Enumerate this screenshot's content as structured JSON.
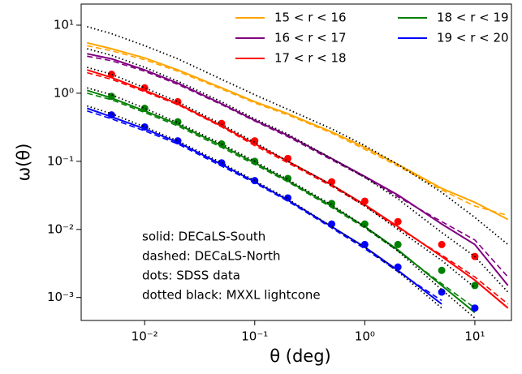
{
  "chart_data": {
    "type": "line",
    "x_label": "θ (deg)",
    "y_label": "ω(θ)",
    "x_log": true,
    "y_log": true,
    "xlim": [
      0.00265,
      21.5
    ],
    "ylim": [
      0.00046,
      20.4
    ],
    "xticks": [
      {
        "value": 0.01,
        "label": "10⁻²"
      },
      {
        "value": 0.1,
        "label": "10⁻¹"
      },
      {
        "value": 1,
        "label": "10⁰"
      },
      {
        "value": 10,
        "label": "10¹"
      }
    ],
    "yticks": [
      {
        "value": 0.001,
        "label": "10⁻³"
      },
      {
        "value": 0.01,
        "label": "10⁻²"
      },
      {
        "value": 0.1,
        "label": "10⁻¹"
      },
      {
        "value": 1,
        "label": "10⁰"
      },
      {
        "value": 10,
        "label": "10¹"
      }
    ],
    "legend": "upper right",
    "annotations": [
      "solid: DECaLS-South",
      "dashed: DECaLS-North",
      "dots: SDSS data",
      "dotted black: MXXL lightcone"
    ],
    "x": [
      0.003,
      0.005,
      0.01,
      0.02,
      0.05,
      0.1,
      0.2,
      0.5,
      1,
      2,
      5,
      10,
      20
    ],
    "series": [
      {
        "name": "15 < r < 16",
        "color": "#ffa500",
        "style": "solid",
        "values": [
          5.5,
          4.5,
          3.3,
          2.2,
          1.2,
          0.75,
          0.5,
          0.27,
          0.16,
          0.09,
          0.04,
          0.025,
          0.014
        ]
      },
      {
        "name": "16 < r < 17",
        "color": "#800080",
        "style": "solid",
        "values": [
          3.8,
          3.2,
          2.2,
          1.4,
          0.7,
          0.4,
          0.24,
          0.11,
          0.06,
          0.032,
          0.012,
          0.006,
          0.0015
        ]
      },
      {
        "name": "17 < r < 18",
        "color": "#ff0000",
        "style": "solid",
        "values": [
          2.2,
          1.7,
          1.1,
          0.7,
          0.33,
          0.18,
          0.1,
          0.045,
          0.023,
          0.011,
          0.004,
          0.0018,
          0.0007
        ]
      },
      {
        "name": "18 < r < 19",
        "color": "#008000",
        "style": "solid",
        "values": [
          1.1,
          0.85,
          0.55,
          0.35,
          0.17,
          0.095,
          0.052,
          0.022,
          0.011,
          0.005,
          0.0015,
          0.0006,
          null
        ]
      },
      {
        "name": "19 < r < 20",
        "color": "#0000ff",
        "style": "solid",
        "values": [
          0.6,
          0.45,
          0.3,
          0.19,
          0.09,
          0.05,
          0.027,
          0.011,
          0.0055,
          0.0025,
          0.0008,
          null,
          null
        ]
      },
      {
        "color": "#ffa500",
        "style": "dashed",
        "values": [
          5.0,
          4.2,
          3.1,
          2.1,
          1.15,
          0.72,
          0.48,
          0.26,
          0.15,
          0.085,
          0.038,
          0.022,
          0.016
        ]
      },
      {
        "color": "#800080",
        "style": "dashed",
        "values": [
          3.5,
          3.0,
          2.1,
          1.35,
          0.68,
          0.39,
          0.23,
          0.105,
          0.058,
          0.03,
          0.013,
          0.007,
          0.002
        ]
      },
      {
        "color": "#ff0000",
        "style": "dashed",
        "values": [
          2.0,
          1.6,
          1.05,
          0.68,
          0.32,
          0.17,
          0.095,
          0.043,
          0.022,
          0.0105,
          0.0042,
          0.002,
          0.0008
        ]
      },
      {
        "color": "#008000",
        "style": "dashed",
        "values": [
          1.0,
          0.8,
          0.52,
          0.33,
          0.16,
          0.09,
          0.05,
          0.021,
          0.0105,
          0.0048,
          0.0016,
          0.0007,
          null
        ]
      },
      {
        "color": "#0000ff",
        "style": "dashed",
        "values": [
          0.55,
          0.42,
          0.28,
          0.18,
          0.085,
          0.048,
          0.026,
          0.0105,
          0.0052,
          0.0024,
          0.0009,
          null,
          null
        ]
      },
      {
        "color": "#ff0000",
        "style": "dots",
        "values": [
          null,
          1.9,
          1.2,
          0.75,
          0.36,
          0.2,
          0.11,
          0.05,
          0.026,
          0.013,
          0.006,
          0.004,
          null
        ]
      },
      {
        "color": "#008000",
        "style": "dots",
        "values": [
          null,
          0.9,
          0.6,
          0.38,
          0.18,
          0.1,
          0.056,
          0.024,
          0.012,
          0.006,
          0.0025,
          0.0015,
          null
        ]
      },
      {
        "color": "#0000ff",
        "style": "dots",
        "values": [
          null,
          0.48,
          0.32,
          0.2,
          0.095,
          0.052,
          0.029,
          0.012,
          0.006,
          0.0028,
          0.0012,
          0.0007,
          null
        ]
      },
      {
        "color": "#000000",
        "style": "dotted",
        "values": [
          9.5,
          7.5,
          5.0,
          3.2,
          1.6,
          0.95,
          0.58,
          0.3,
          0.17,
          0.09,
          0.035,
          0.015,
          0.006
        ]
      },
      {
        "color": "#000000",
        "style": "dotted",
        "values": [
          4.5,
          3.6,
          2.4,
          1.5,
          0.75,
          0.42,
          0.25,
          0.11,
          0.058,
          0.028,
          0.009,
          0.004,
          0.0012
        ]
      },
      {
        "color": "#000000",
        "style": "dotted",
        "values": [
          2.4,
          1.9,
          1.2,
          0.75,
          0.35,
          0.19,
          0.1,
          0.045,
          0.022,
          0.01,
          0.0035,
          0.0014,
          null
        ]
      },
      {
        "color": "#000000",
        "style": "dotted",
        "values": [
          1.2,
          0.95,
          0.6,
          0.37,
          0.18,
          0.1,
          0.054,
          0.023,
          0.011,
          0.0048,
          0.0013,
          0.0005,
          null
        ]
      },
      {
        "color": "#000000",
        "style": "dotted",
        "values": [
          0.65,
          0.5,
          0.32,
          0.2,
          0.095,
          0.052,
          0.028,
          0.011,
          0.0055,
          0.0024,
          0.0007,
          null,
          null
        ]
      }
    ]
  }
}
